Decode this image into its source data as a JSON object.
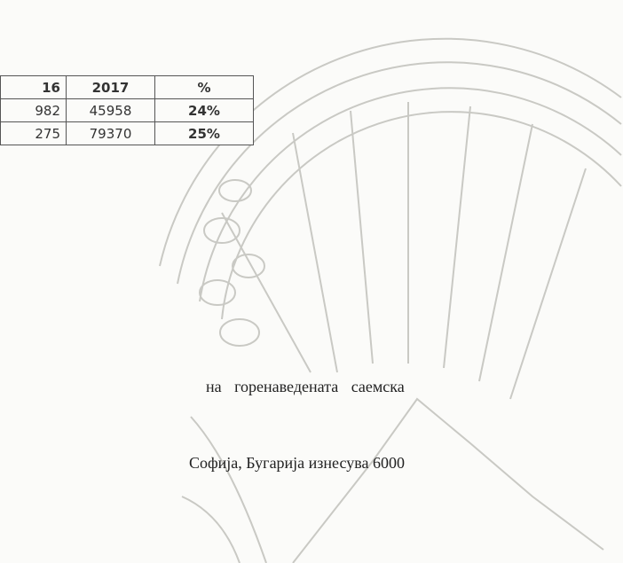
{
  "table": {
    "header": [
      "16",
      "2017",
      "%"
    ],
    "rows": [
      [
        "982",
        "45958",
        "24%"
      ],
      [
        "275",
        "79370",
        "25%"
      ]
    ]
  },
  "paragraphs": [
    "на горенаведената саемска",
    "Софија, Бугарија изнесува 6000"
  ]
}
